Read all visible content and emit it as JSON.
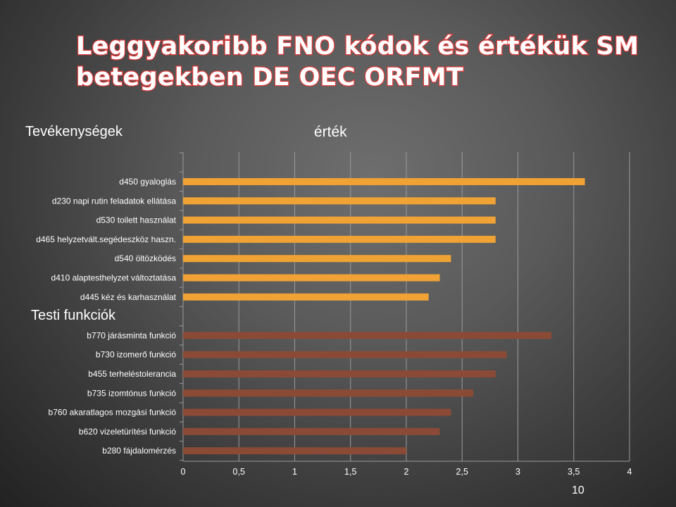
{
  "title": "Leggyakoribb FNO kódok és értékük SM betegekben DE OEC ORFMT",
  "group_labels": {
    "activities": "Tevékenységek",
    "value": "érték",
    "body_functions": "Testi funkciók"
  },
  "page_number": "10",
  "colors": {
    "activities": "#f0a235",
    "body_functions": "#8b4a35",
    "axis": "#9a9a9a",
    "title_outline": "#e23a3a"
  },
  "chart_data": {
    "type": "bar",
    "orientation": "horizontal",
    "xlim": [
      0,
      4
    ],
    "x_ticks": [
      "0",
      "0,5",
      "1",
      "1,5",
      "2",
      "2,5",
      "3",
      "3,5",
      "4"
    ],
    "series": [
      {
        "group": "activities",
        "categories": [
          "d450 gyaloglás",
          "d230 napi rutin feladatok ellátása",
          "d530 toilett használat",
          "d465 helyzetvált.segédeszköz haszn.",
          "d540 öltözködés",
          "d410 alaptesthelyzet változtatása",
          "d445 kéz és karhasználat"
        ],
        "values": [
          3.6,
          2.8,
          2.8,
          2.8,
          2.4,
          2.3,
          2.2
        ]
      },
      {
        "group": "body_functions",
        "categories": [
          "b770 járásminta funkció",
          "b730 izomerő funkció",
          "b455 terheléstolerancia",
          "b735 izomtónus funkció",
          "b760 akaratlagos mozgási funkció",
          "b620 vizeletürítési funkció",
          "b280 fájdalomérzés"
        ],
        "values": [
          3.3,
          2.9,
          2.8,
          2.6,
          2.4,
          2.3,
          2.0
        ]
      }
    ],
    "grid": "vertical"
  }
}
